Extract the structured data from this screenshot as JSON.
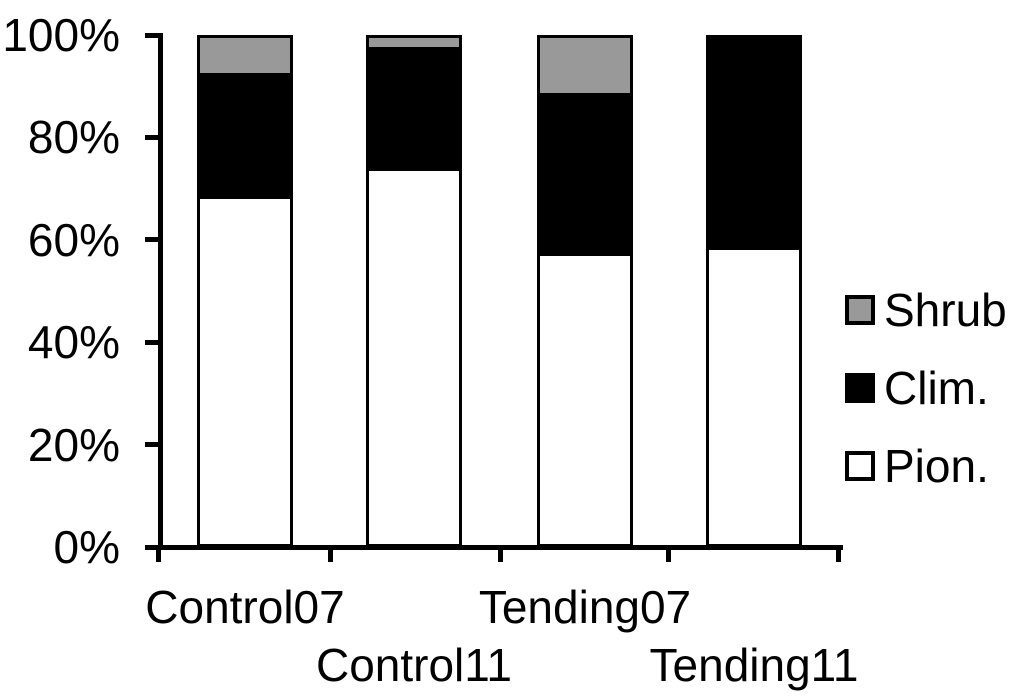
{
  "chart_data": {
    "type": "bar",
    "subtype": "stacked-100-percent",
    "title": "",
    "categories": [
      "Control07",
      "Control11",
      "Tending07",
      "Tending11"
    ],
    "series": [
      {
        "name": "Pion.",
        "color": "#ffffff",
        "values": [
          68.5,
          74,
          57.5,
          58.5
        ]
      },
      {
        "name": "Clim.",
        "color": "#000000",
        "values": [
          23.5,
          23,
          30.5,
          41.5
        ]
      },
      {
        "name": "Shrub",
        "color": "#999999",
        "values": [
          8,
          3,
          12,
          0
        ]
      }
    ],
    "unit": "%",
    "ylim": [
      0,
      100
    ],
    "y_tick_labels": [
      "0%",
      "20%",
      "40%",
      "60%",
      "80%",
      "100%"
    ],
    "x_label_rows": {
      "row1": [
        "Control07",
        "Tending07"
      ],
      "row2": [
        "Control11",
        "Tending11"
      ]
    },
    "legend": {
      "position": "right",
      "entries": [
        {
          "label": "Shrub",
          "color": "#999999"
        },
        {
          "label": "Clim.",
          "color": "#000000"
        },
        {
          "label": "Pion.",
          "color": "#ffffff"
        }
      ]
    },
    "grid": false,
    "background": "#ffffff",
    "axis_color": "#000000"
  }
}
